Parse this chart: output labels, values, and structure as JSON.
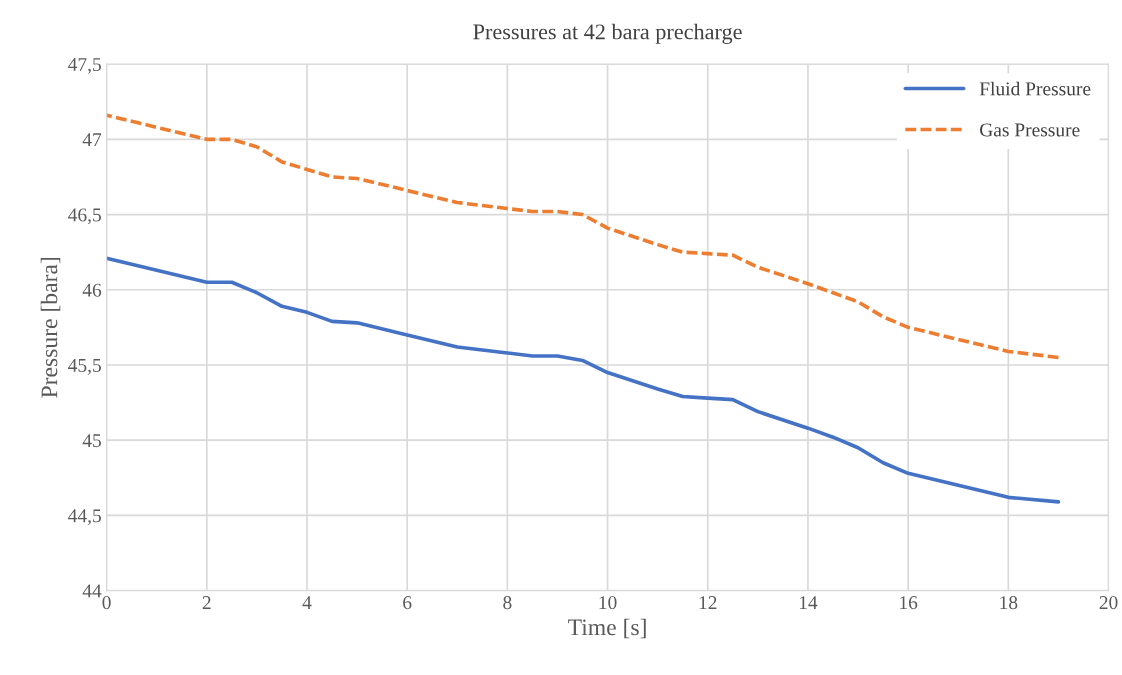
{
  "chart_data": {
    "type": "line",
    "title": "Pressures at 42 bara precharge",
    "xlabel": "Time [s]",
    "ylabel": "Pressure [bara]",
    "x": [
      0,
      1,
      2,
      2.5,
      3,
      3.5,
      4,
      4.5,
      5,
      6,
      7,
      8,
      8.5,
      9,
      9.5,
      10,
      11,
      11.5,
      12,
      12.5,
      13,
      14,
      14.5,
      15,
      15.5,
      16,
      17,
      18,
      19
    ],
    "series": [
      {
        "name": "Fluid Pressure",
        "color": "#4472c4",
        "line_style": "solid",
        "values": [
          46.21,
          46.13,
          46.05,
          46.05,
          45.98,
          45.89,
          45.85,
          45.79,
          45.78,
          45.7,
          45.62,
          45.58,
          45.56,
          45.56,
          45.53,
          45.45,
          45.34,
          45.29,
          45.28,
          45.27,
          45.19,
          45.08,
          45.02,
          44.95,
          44.85,
          44.78,
          44.7,
          44.62,
          44.59
        ]
      },
      {
        "name": "Gas Pressure",
        "color": "#ed7d31",
        "line_style": "dashed",
        "values": [
          47.16,
          47.08,
          47.0,
          47.0,
          46.95,
          46.85,
          46.8,
          46.75,
          46.74,
          46.66,
          46.58,
          46.54,
          46.52,
          46.52,
          46.5,
          46.41,
          46.3,
          46.25,
          46.24,
          46.23,
          46.15,
          46.04,
          45.98,
          45.92,
          45.82,
          45.75,
          45.67,
          45.59,
          45.55
        ]
      }
    ],
    "xlim": [
      0,
      20
    ],
    "xticks": [
      0,
      2,
      4,
      6,
      8,
      10,
      12,
      14,
      16,
      18,
      20
    ],
    "ylim": [
      44,
      47.5
    ],
    "yticks": [
      44,
      {
        "value": 44.5,
        "label": "44,5"
      },
      45,
      {
        "value": 45.5,
        "label": "45,5"
      },
      46,
      {
        "value": 46.5,
        "label": "46,5"
      },
      47,
      {
        "value": 47.5,
        "label": "47,5"
      }
    ],
    "grid": true,
    "legend": "top right",
    "marker": "none"
  }
}
